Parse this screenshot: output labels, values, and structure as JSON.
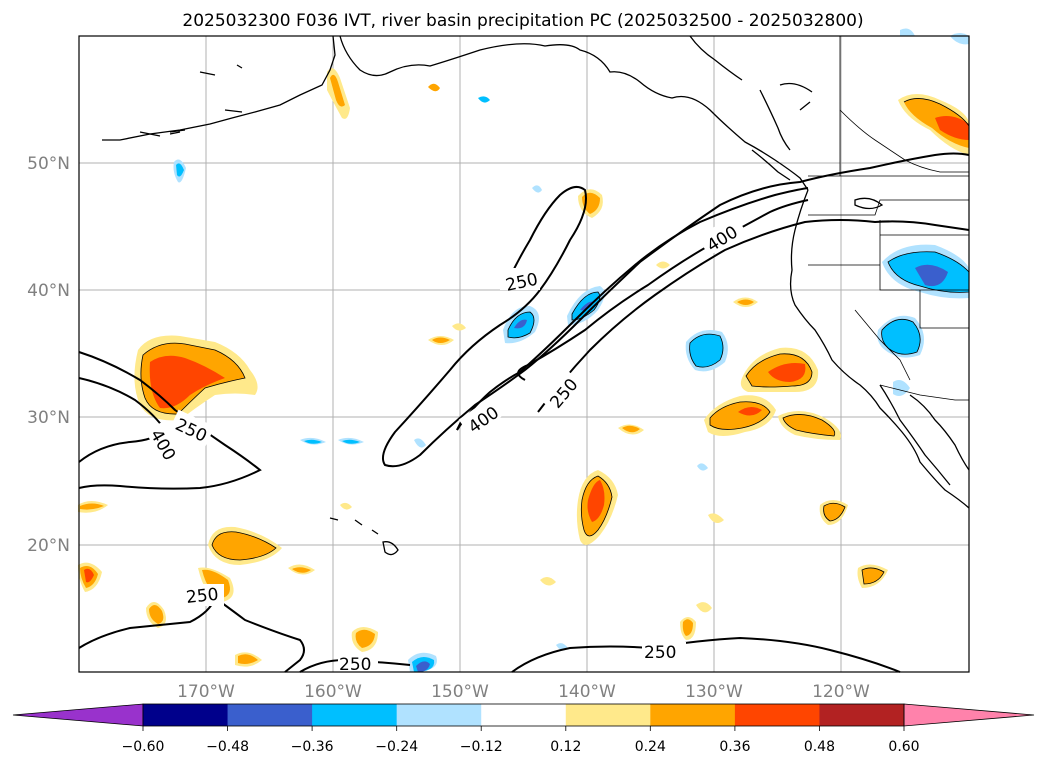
{
  "title": "2025032300 F036 IVT, river basin precipitation PC (2025032500 - 2025032800)",
  "lat_labels": [
    "50°N",
    "40°N",
    "30°N",
    "20°N"
  ],
  "lon_labels": [
    "170°W",
    "160°W",
    "150°W",
    "140°W",
    "130°W",
    "120°W"
  ],
  "contour_labels": [
    "250",
    "400",
    "250",
    "400",
    "250",
    "400",
    "250",
    "250",
    "250"
  ],
  "colorbar": {
    "ticks": [
      "−0.60",
      "−0.48",
      "−0.36",
      "−0.24",
      "−0.12",
      "0.12",
      "0.24",
      "0.36",
      "0.48",
      "0.60"
    ],
    "colors": {
      "under": "#9932cc",
      "bins": [
        "#00008b",
        "#3a5fcd",
        "#00bfff",
        "#b0e2ff",
        "#ffffff",
        "#ffe98b",
        "#ffa500",
        "#ff4500",
        "#b22222"
      ],
      "over": "#ff82ab"
    }
  },
  "colors": {
    "pos1": "#ffe98b",
    "pos2": "#ffa500",
    "pos3": "#ff4500",
    "neg1": "#b0e2ff",
    "neg2": "#00bfff",
    "neg3": "#3a5fcd"
  }
}
